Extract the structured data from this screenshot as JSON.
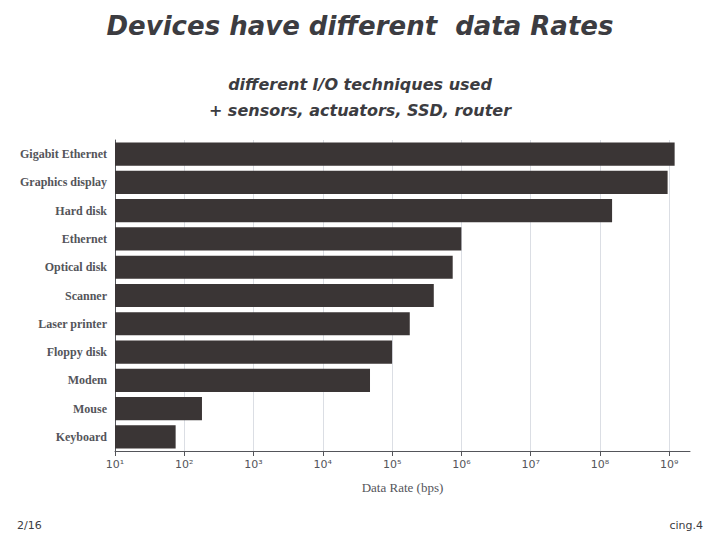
{
  "chart_data": {
    "type": "bar",
    "title": "Devices have different  data Rates",
    "subtitle": [
      "different I/O techniques used",
      "+ sensors, actuators, SSD, router"
    ],
    "xlabel": "Data Rate (bps)",
    "orientation": "horizontal",
    "log": "x",
    "categories": [
      "Gigabit Ethernet",
      "Graphics display",
      "Hard disk",
      "Ethernet",
      "Optical disk",
      "Scanner",
      "Laser printer",
      "Floppy disk",
      "Modem",
      "Mouse",
      "Keyboard"
    ],
    "values": [
      1200000000,
      950000000,
      150000000,
      1000000,
      750000,
      400000,
      180000,
      100000,
      48000,
      180,
      75
    ],
    "color": "#3a3535",
    "xlim": [
      10,
      2000000000
    ],
    "xticks": [
      {
        "value": 10,
        "label": "10¹"
      },
      {
        "value": 100,
        "label": "10²"
      },
      {
        "value": 1000,
        "label": "10³"
      },
      {
        "value": 10000,
        "label": "10⁴"
      },
      {
        "value": 100000,
        "label": "10⁵"
      },
      {
        "value": 1000000,
        "label": "10⁶"
      },
      {
        "value": 10000000,
        "label": "10⁷"
      },
      {
        "value": 100000000,
        "label": "10⁸"
      },
      {
        "value": 1000000000,
        "label": "10⁹"
      }
    ],
    "grid": true,
    "annotations": [
      "2/16",
      "cing.4"
    ]
  }
}
